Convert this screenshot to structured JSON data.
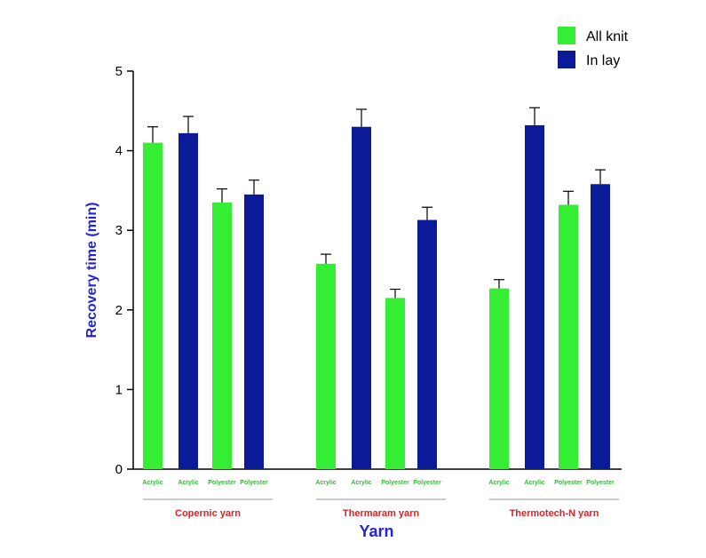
{
  "chart_data": {
    "type": "bar",
    "title": "",
    "xlabel": "Yarn",
    "ylabel": "Recovery time (min)",
    "ylim": [
      0,
      5
    ],
    "yticks": [
      0,
      1,
      2,
      3,
      4,
      5
    ],
    "grid": false,
    "legend_position": "top-right",
    "groups": [
      {
        "label": "Copernic yarn",
        "categories": [
          "Acrylic",
          "Acrylic",
          "Polyester",
          "Polyester"
        ]
      },
      {
        "label": "Thermaram yarn",
        "categories": [
          "Acrylic",
          "Acrylic",
          "Polyester",
          "Polyester"
        ]
      },
      {
        "label": "Thermotech-N yarn",
        "categories": [
          "Acrylic",
          "Acrylic",
          "Polyester",
          "Polyester"
        ]
      }
    ],
    "series": [
      {
        "name": "All knit",
        "color": "#33ee33"
      },
      {
        "name": "In lay",
        "color": "#0a1a99"
      }
    ],
    "bars": [
      {
        "group": 0,
        "category": "Acrylic",
        "series": 0,
        "value": 4.1,
        "error": 0.2
      },
      {
        "group": 0,
        "category": "Acrylic",
        "series": 1,
        "value": 4.22,
        "error": 0.21
      },
      {
        "group": 0,
        "category": "Polyester",
        "series": 0,
        "value": 3.35,
        "error": 0.17
      },
      {
        "group": 0,
        "category": "Polyester",
        "series": 1,
        "value": 3.45,
        "error": 0.18
      },
      {
        "group": 1,
        "category": "Acrylic",
        "series": 0,
        "value": 2.58,
        "error": 0.12
      },
      {
        "group": 1,
        "category": "Acrylic",
        "series": 1,
        "value": 4.3,
        "error": 0.22
      },
      {
        "group": 1,
        "category": "Polyester",
        "series": 0,
        "value": 2.15,
        "error": 0.11
      },
      {
        "group": 1,
        "category": "Polyester",
        "series": 1,
        "value": 3.13,
        "error": 0.16
      },
      {
        "group": 2,
        "category": "Acrylic",
        "series": 0,
        "value": 2.27,
        "error": 0.11
      },
      {
        "group": 2,
        "category": "Acrylic",
        "series": 1,
        "value": 4.32,
        "error": 0.22
      },
      {
        "group": 2,
        "category": "Polyester",
        "series": 0,
        "value": 3.32,
        "error": 0.17
      },
      {
        "group": 2,
        "category": "Polyester",
        "series": 1,
        "value": 3.58,
        "error": 0.18
      }
    ],
    "colors": {
      "category_label": "#33bb33",
      "group_label": "#dd2222",
      "axis_title": "#2222dd"
    }
  }
}
